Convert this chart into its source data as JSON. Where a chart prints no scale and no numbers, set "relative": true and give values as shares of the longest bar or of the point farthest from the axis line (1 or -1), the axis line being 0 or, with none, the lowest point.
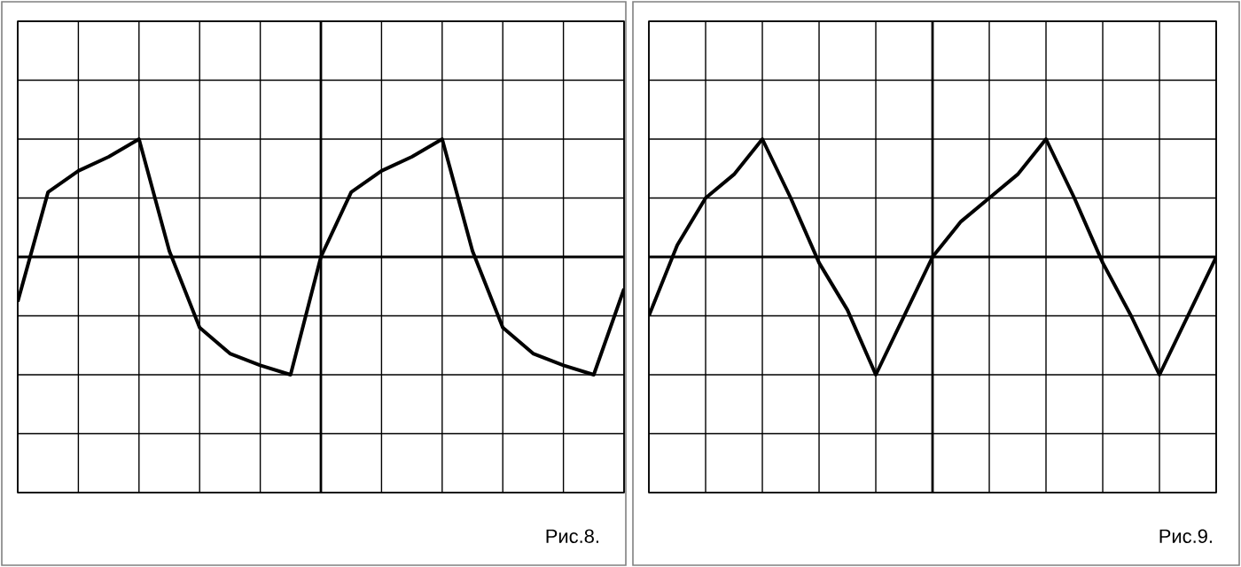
{
  "chart_data": [
    {
      "type": "line",
      "relative": true,
      "grid": true,
      "categories": [
        null,
        null,
        null,
        null,
        null,
        null,
        null,
        null,
        null,
        null,
        null,
        null,
        null,
        null,
        null,
        null,
        null,
        null,
        null,
        null,
        null
      ],
      "series": [
        {
          "color": "#000000",
          "values": [
            -0.38,
            0.55,
            0.73,
            0.85,
            1.0,
            0.05,
            -0.6,
            -0.82,
            -0.92,
            -1.0,
            0,
            0.55,
            0.73,
            0.85,
            1.0,
            0.05,
            -0.6,
            -0.82,
            -0.92,
            -1.0,
            -0.27
          ]
        }
      ],
      "annotations": [
        "Рис.8."
      ]
    },
    {
      "type": "line",
      "relative": true,
      "grid": true,
      "categories": [
        null,
        null,
        null,
        null,
        null,
        null,
        null,
        null,
        null,
        null,
        null,
        null,
        null,
        null,
        null,
        null,
        null,
        null,
        null,
        null,
        null
      ],
      "series": [
        {
          "color": "#000000",
          "values": [
            -0.5,
            0.1,
            0.5,
            0.7,
            1.0,
            0.5,
            -0.05,
            -0.45,
            -1.0,
            -0.5,
            0,
            0.3,
            0.5,
            0.7,
            1.0,
            0.5,
            -0.05,
            -0.5,
            -1.0,
            -0.5,
            0
          ]
        }
      ],
      "annotations": [
        "Рис.9."
      ]
    }
  ]
}
